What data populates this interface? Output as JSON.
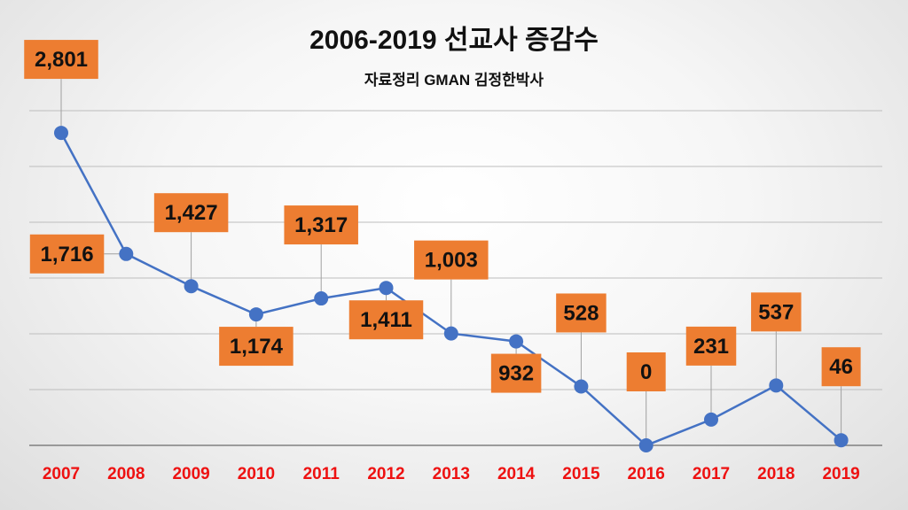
{
  "chart_data": {
    "type": "line",
    "title": "2006-2019 선교사  증감수",
    "subtitle": "자료정리 GMAN 김정한박사",
    "categories": [
      "2007",
      "2008",
      "2009",
      "2010",
      "2011",
      "2012",
      "2013",
      "2014",
      "2015",
      "2016",
      "2017",
      "2018",
      "2019"
    ],
    "values": [
      2801,
      1716,
      1427,
      1174,
      1317,
      1411,
      1003,
      932,
      528,
      0,
      231,
      537,
      46
    ],
    "data_labels": [
      "2,801",
      "1,716",
      "1,427",
      "1,174",
      "1,317",
      "1,411",
      "1,003",
      "932",
      "528",
      "0",
      "231",
      "537",
      "46"
    ],
    "label_positions": [
      "above",
      "left",
      "above",
      "below",
      "above",
      "below",
      "above",
      "below",
      "above",
      "above",
      "above",
      "above",
      "above"
    ],
    "ylim": [
      0,
      3000
    ],
    "grid": true,
    "legend": "none",
    "colors": {
      "line": "#4472c4",
      "marker": "#4472c4",
      "label_box": "#ed7d31",
      "label_text": "#111111",
      "tick_label": "#ee1111",
      "gridline": "#bdbdbd",
      "axis": "#808080"
    }
  }
}
